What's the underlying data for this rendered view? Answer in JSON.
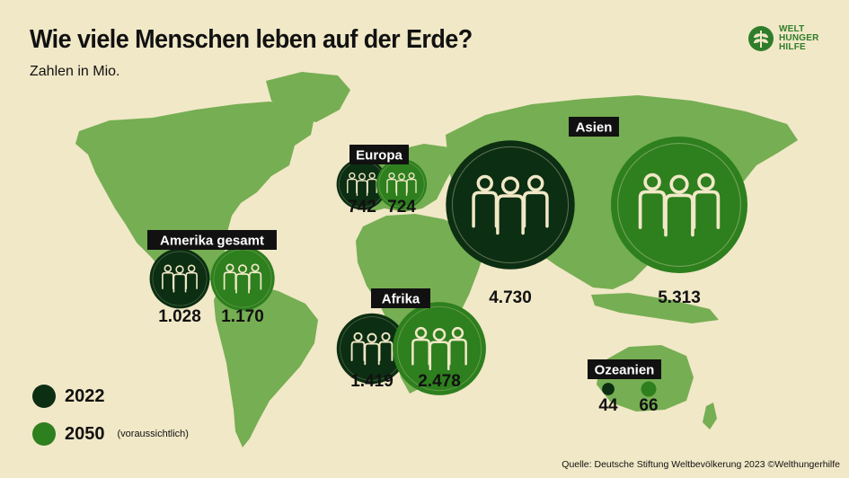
{
  "header": {
    "title": "Wie viele Menschen leben auf der Erde?",
    "subtitle": "Zahlen in Mio."
  },
  "logo": {
    "line1": "WELT",
    "line2": "HUNGER",
    "line3": "HILFE",
    "icon": "wheat-leaf-icon"
  },
  "legend": {
    "items": [
      {
        "label": "2022",
        "note": "",
        "color": "#0c2e12"
      },
      {
        "label": "2050",
        "note": "(voraussichtlich)",
        "color": "#2e7f1e"
      }
    ]
  },
  "source": "Quelle: Deutsche Stiftung Weltbevölkerung 2023 ©Welthungerhilfe",
  "colors": {
    "background": "#f1e8c7",
    "map": "#76ae53",
    "dark": "#0c2e12",
    "green": "#2e7f1e",
    "label_bg": "#111111"
  },
  "chart_data": {
    "type": "bubble-map",
    "title": "Wie viele Menschen leben auf der Erde?",
    "subtitle": "Zahlen in Mio.",
    "categories": [
      "Amerika gesamt",
      "Europa",
      "Afrika",
      "Asien",
      "Ozeanien"
    ],
    "series": [
      {
        "name": "2022",
        "value_labels": [
          "1.028",
          "742",
          "1.419",
          "4.730",
          "44"
        ],
        "values": [
          1028,
          742,
          1419,
          4730,
          44
        ]
      },
      {
        "name": "2050",
        "value_labels": [
          "1.170",
          "724",
          "2.478",
          "5.313",
          "66"
        ],
        "values": [
          1170,
          724,
          2478,
          5313,
          66
        ]
      }
    ]
  }
}
